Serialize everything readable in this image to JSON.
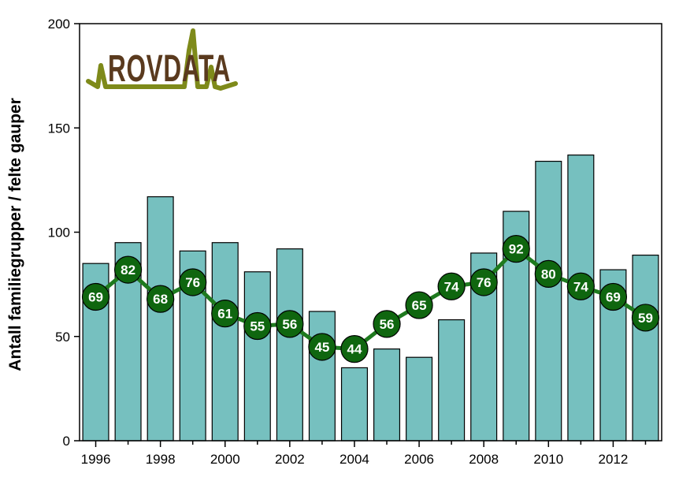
{
  "chart_data": {
    "type": "bar",
    "title": "",
    "xlabel": "",
    "ylabel": "Antall familiegrupper / felte gauper",
    "ylim": [
      0,
      200
    ],
    "y_ticks": [
      0,
      50,
      100,
      150,
      200
    ],
    "x_tick_labels": [
      "1996",
      "1998",
      "2000",
      "2002",
      "2004",
      "2006",
      "2008",
      "2010",
      "2012"
    ],
    "categories": [
      "1996",
      "1997",
      "1998",
      "1999",
      "2000",
      "2001",
      "2002",
      "2003",
      "2004",
      "2005",
      "2006",
      "2007",
      "2008",
      "2009",
      "2010",
      "2011",
      "2012",
      "2013"
    ],
    "series": [
      {
        "type": "bar",
        "values": [
          85,
          95,
          117,
          91,
          95,
          81,
          92,
          62,
          35,
          44,
          40,
          58,
          90,
          110,
          134,
          137,
          82,
          89
        ]
      },
      {
        "type": "line",
        "values": [
          69,
          82,
          68,
          76,
          61,
          55,
          56,
          45,
          44,
          56,
          65,
          74,
          76,
          92,
          80,
          74,
          69,
          59
        ]
      }
    ],
    "grid": false,
    "colors": {
      "bar": "#76c0bf",
      "line": "#1e7a1e",
      "marker": "#0f660f",
      "logo": "#7e8a1a",
      "logo_text": "#5a3a1e"
    }
  },
  "logo": {
    "text": "ROVDATA"
  }
}
